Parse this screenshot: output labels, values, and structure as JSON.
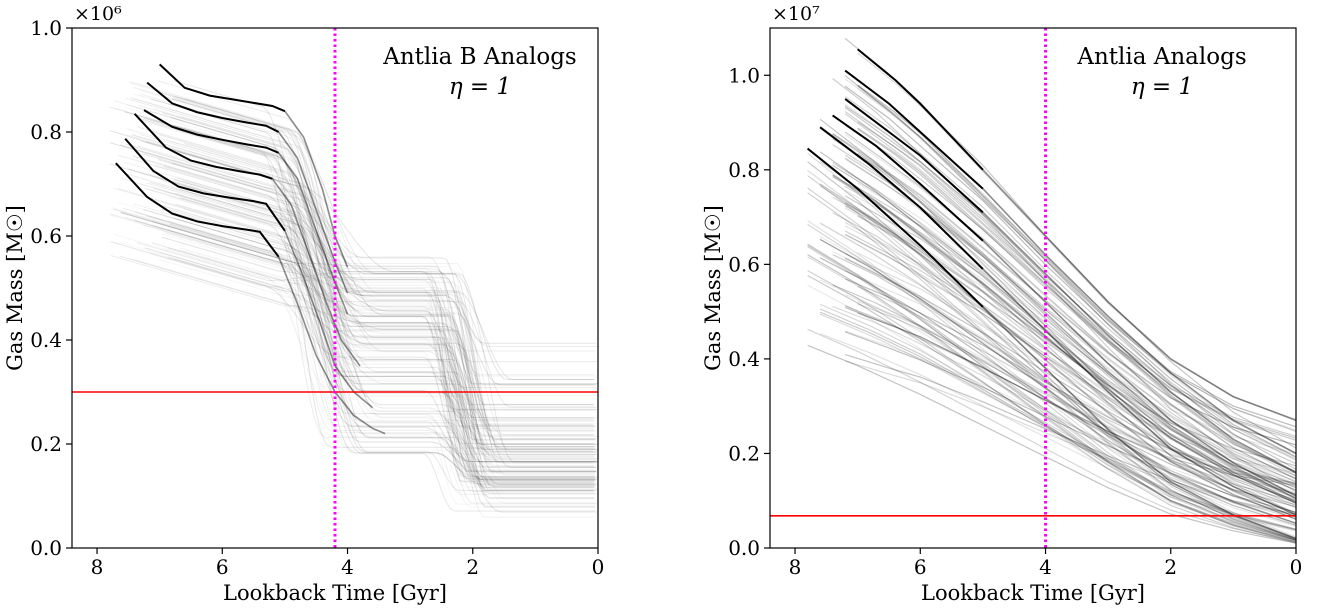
{
  "chart_data": [
    {
      "type": "line",
      "xlabel": "Lookback Time [Gyr]",
      "ylabel": "Gas Mass [M☉]",
      "y_multiplier": "×10⁶",
      "xlim": [
        8.4,
        0
      ],
      "ylim": [
        0,
        1.0
      ],
      "x_ticks": [
        8,
        6,
        4,
        2,
        0
      ],
      "y_ticks": [
        0.0,
        0.2,
        0.4,
        0.6,
        0.8,
        1.0
      ],
      "x_tick_labels": [
        "8",
        "6",
        "4",
        "2",
        "0"
      ],
      "y_tick_labels": [
        "0.0",
        "0.2",
        "0.4",
        "0.6",
        "0.8",
        "1.0"
      ],
      "annotation_title": "Antlia B Analogs",
      "annotation_eta": "η = 1",
      "hline": {
        "y": 0.3,
        "color": "#ff0000"
      },
      "vline": {
        "x": 4.2,
        "color": "#ff00ff",
        "style": "dotted"
      },
      "track_color": "#000000",
      "highlighted_tracks": [
        {
          "x": [
            7.7,
            7.2,
            6.8,
            6.4,
            6.0,
            5.6,
            5.4,
            5.1,
            4.8,
            4.5,
            4.2,
            3.9,
            3.6,
            3.4
          ],
          "y": [
            0.74,
            0.675,
            0.643,
            0.628,
            0.619,
            0.612,
            0.608,
            0.56,
            0.47,
            0.37,
            0.3,
            0.255,
            0.23,
            0.22
          ]
        },
        {
          "x": [
            7.55,
            7.1,
            6.7,
            6.3,
            5.9,
            5.5,
            5.3,
            5.0,
            4.7,
            4.4,
            4.2,
            3.9,
            3.6
          ],
          "y": [
            0.787,
            0.725,
            0.695,
            0.682,
            0.674,
            0.667,
            0.662,
            0.61,
            0.52,
            0.42,
            0.35,
            0.3,
            0.27
          ]
        },
        {
          "x": [
            7.4,
            6.9,
            6.5,
            6.1,
            5.7,
            5.4,
            5.2,
            4.9,
            4.6,
            4.3,
            4.1,
            3.8
          ],
          "y": [
            0.835,
            0.77,
            0.745,
            0.733,
            0.724,
            0.718,
            0.71,
            0.66,
            0.56,
            0.46,
            0.4,
            0.35
          ]
        },
        {
          "x": [
            7.25,
            6.8,
            6.4,
            6.0,
            5.6,
            5.3,
            5.1,
            4.8,
            4.5,
            4.2,
            4.0
          ],
          "y": [
            0.842,
            0.81,
            0.795,
            0.785,
            0.776,
            0.77,
            0.76,
            0.71,
            0.61,
            0.51,
            0.45
          ]
        },
        {
          "x": [
            7.2,
            6.8,
            6.4,
            6.0,
            5.6,
            5.3,
            5.1,
            4.8,
            4.5,
            4.2,
            4.0
          ],
          "y": [
            0.895,
            0.855,
            0.838,
            0.827,
            0.818,
            0.812,
            0.8,
            0.75,
            0.65,
            0.55,
            0.49
          ]
        },
        {
          "x": [
            7.0,
            6.6,
            6.2,
            5.8,
            5.5,
            5.2,
            5.0,
            4.7,
            4.4,
            4.2,
            4.0
          ],
          "y": [
            0.93,
            0.885,
            0.87,
            0.862,
            0.856,
            0.85,
            0.84,
            0.79,
            0.69,
            0.6,
            0.54
          ]
        }
      ]
    },
    {
      "type": "line",
      "xlabel": "Lookback Time [Gyr]",
      "ylabel": "Gas Mass [M☉]",
      "y_multiplier": "×10⁷",
      "xlim": [
        8.4,
        0
      ],
      "ylim": [
        0,
        1.1
      ],
      "x_ticks": [
        8,
        6,
        4,
        2,
        0
      ],
      "y_ticks": [
        0.0,
        0.2,
        0.4,
        0.6,
        0.8,
        1.0
      ],
      "x_tick_labels": [
        "8",
        "6",
        "4",
        "2",
        "0"
      ],
      "y_tick_labels": [
        "0.0",
        "0.2",
        "0.4",
        "0.6",
        "0.8",
        "1.0"
      ],
      "annotation_title": "Antlia Analogs",
      "annotation_eta": "η = 1",
      "hline": {
        "y": 0.068,
        "color": "#ff0000"
      },
      "vline": {
        "x": 4.0,
        "color": "#ff00ff",
        "style": "dotted"
      },
      "track_color": "#000000",
      "highlighted_tracks": [
        {
          "x": [
            7.8,
            7.0,
            6.0,
            5.0,
            4.0,
            3.0,
            2.0,
            1.0,
            0.0
          ],
          "y": [
            0.845,
            0.76,
            0.64,
            0.51,
            0.38,
            0.25,
            0.14,
            0.07,
            0.02
          ]
        },
        {
          "x": [
            7.6,
            6.8,
            6.0,
            5.0,
            4.0,
            3.0,
            2.0,
            1.0,
            0.0
          ],
          "y": [
            0.89,
            0.81,
            0.72,
            0.59,
            0.46,
            0.33,
            0.21,
            0.13,
            0.07
          ]
        },
        {
          "x": [
            7.4,
            6.7,
            6.0,
            5.0,
            4.0,
            3.0,
            2.0,
            1.0,
            0.0
          ],
          "y": [
            0.915,
            0.85,
            0.77,
            0.65,
            0.52,
            0.39,
            0.27,
            0.18,
            0.11
          ]
        },
        {
          "x": [
            7.2,
            6.5,
            6.0,
            5.0,
            4.0,
            3.0,
            2.0,
            1.0,
            0.0
          ],
          "y": [
            0.95,
            0.88,
            0.83,
            0.71,
            0.58,
            0.45,
            0.33,
            0.23,
            0.16
          ]
        },
        {
          "x": [
            7.2,
            6.5,
            6.0,
            5.0,
            4.0,
            3.0,
            2.0,
            1.0,
            0.0
          ],
          "y": [
            1.01,
            0.94,
            0.88,
            0.76,
            0.62,
            0.49,
            0.37,
            0.27,
            0.2
          ]
        },
        {
          "x": [
            7.0,
            6.4,
            6.0,
            5.0,
            4.0,
            3.0,
            2.0,
            1.0,
            0.0
          ],
          "y": [
            1.055,
            0.99,
            0.94,
            0.8,
            0.66,
            0.52,
            0.4,
            0.32,
            0.27
          ]
        }
      ]
    }
  ]
}
